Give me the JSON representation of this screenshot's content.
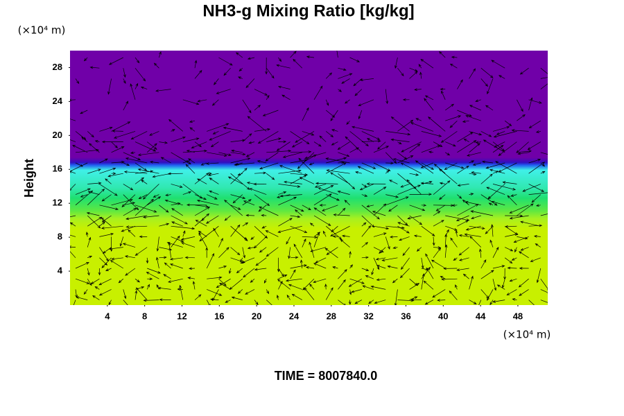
{
  "chart_data": {
    "type": "field",
    "title": "NH3-g Mixing Ratio [kg/kg]",
    "y_label": "Height",
    "y_unit": "(×10⁴ m)",
    "x_unit": "(×10⁴ m)",
    "footer": "TIME = 8007840.0",
    "xlim": [
      0,
      51.2
    ],
    "xticks": [
      4,
      8,
      12,
      16,
      20,
      24,
      28,
      32,
      36,
      40,
      44,
      48
    ],
    "ylim": [
      0,
      30
    ],
    "yticks": [
      4,
      8,
      12,
      16,
      20,
      24,
      28
    ]
  }
}
